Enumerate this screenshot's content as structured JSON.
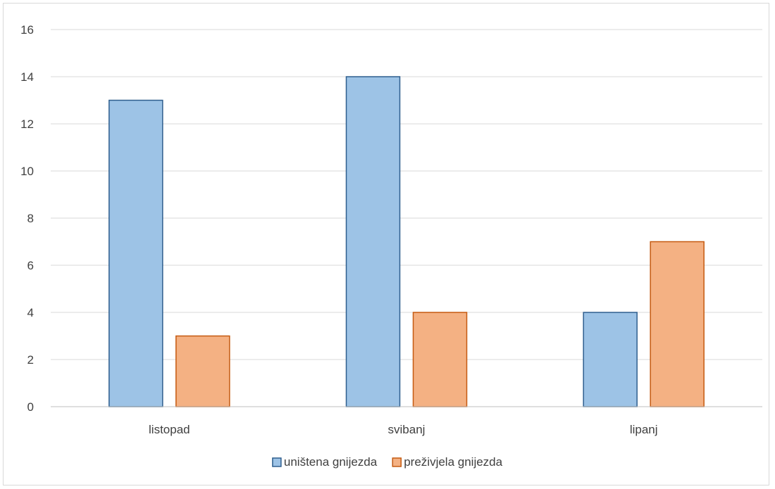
{
  "chart_data": {
    "type": "bar",
    "categories": [
      "listopad",
      "svibanj",
      "lipanj"
    ],
    "series": [
      {
        "name": "uništena gnijezda",
        "values": [
          13,
          14,
          4
        ],
        "fill": "#9dc3e6",
        "stroke": "#2e5e8e"
      },
      {
        "name": "preživjela gnijezda",
        "values": [
          3,
          4,
          7
        ],
        "fill": "#f4b183",
        "stroke": "#c55a11"
      }
    ],
    "title": "",
    "xlabel": "",
    "ylabel": "",
    "ylim": [
      0,
      16
    ],
    "yticks": [
      0,
      2,
      4,
      6,
      8,
      10,
      12,
      14,
      16
    ],
    "grid": true,
    "legend": "bottom-center",
    "gridline_color": "#d9d9d9",
    "axis_line_color": "#bfbfbf"
  }
}
